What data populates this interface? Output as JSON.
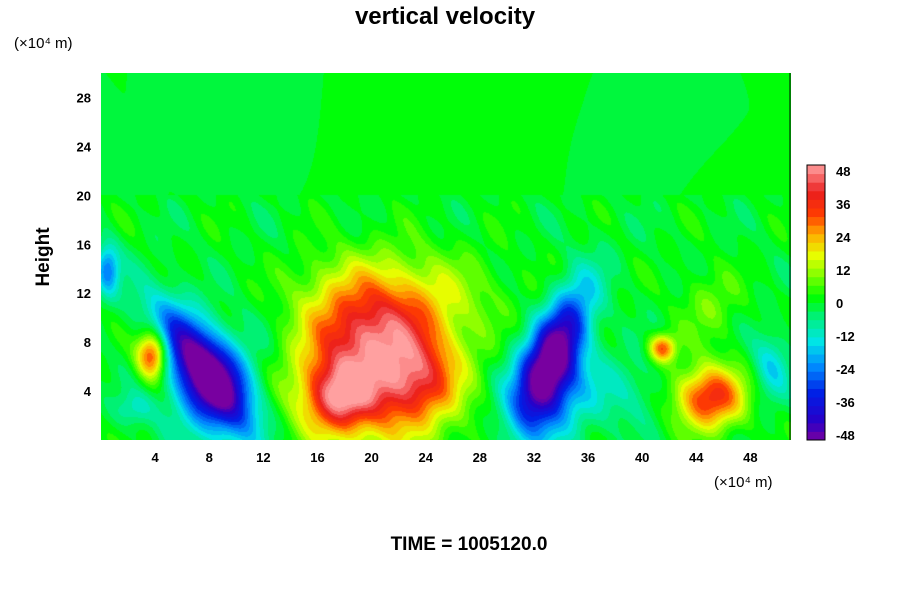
{
  "chart_data": {
    "type": "heatmap",
    "title": "vertical velocity",
    "ylabel": "Height",
    "y_unit": "(×10⁴ m)",
    "x_unit": "(×10⁴ m)",
    "xlim": [
      0,
      51
    ],
    "ylim": [
      0,
      30
    ],
    "xticks": [
      4,
      8,
      12,
      16,
      20,
      24,
      28,
      32,
      36,
      40,
      44,
      48
    ],
    "yticks": [
      4,
      8,
      12,
      16,
      20,
      24,
      28
    ],
    "colorbar": {
      "min": -48,
      "max": 48,
      "ticks": [
        48,
        36,
        24,
        12,
        0,
        -12,
        -24,
        -36,
        -48
      ]
    },
    "features": [
      {
        "x": 20,
        "y": 6,
        "sx": 4.2,
        "sy": 4.2,
        "v": 42
      },
      {
        "x": 17.5,
        "y": 3.5,
        "sx": 1.6,
        "sy": 1.8,
        "v": 24
      },
      {
        "x": 23.5,
        "y": 5,
        "sx": 1.8,
        "sy": 2.2,
        "v": 16
      },
      {
        "x": 20.5,
        "y": 9,
        "sx": 2.5,
        "sy": 2,
        "v": 8
      },
      {
        "x": 21,
        "y": 12,
        "sx": 5.5,
        "sy": 2.5,
        "v": 12
      },
      {
        "x": 45,
        "y": 3.5,
        "sx": 1.8,
        "sy": 1.8,
        "v": 36
      },
      {
        "x": 41.5,
        "y": 7.5,
        "sx": 0.7,
        "sy": 0.8,
        "v": 30
      },
      {
        "x": 3.8,
        "y": 7,
        "sx": 0.8,
        "sy": 1.4,
        "v": 38
      },
      {
        "x": 7.5,
        "y": 6,
        "sx": 1.5,
        "sy": 4,
        "v": -46,
        "rot": -0.55
      },
      {
        "x": 8.3,
        "y": 4,
        "sx": 2.2,
        "sy": 3,
        "v": -20
      },
      {
        "x": 33.5,
        "y": 7,
        "sx": 1.3,
        "sy": 4,
        "v": -46,
        "rot": 0.35
      },
      {
        "x": 33,
        "y": 4,
        "sx": 2.2,
        "sy": 3,
        "v": -22
      },
      {
        "x": 0.5,
        "y": 14,
        "sx": 0.6,
        "sy": 1.5,
        "v": -22
      },
      {
        "x": 49.5,
        "y": 6,
        "sx": 1,
        "sy": 2,
        "v": -14
      },
      {
        "x": 13,
        "y": 9,
        "sx": 2.5,
        "sy": 4,
        "v": -6
      },
      {
        "x": 39,
        "y": 4,
        "sx": 2,
        "sy": 2,
        "v": -8
      },
      {
        "x": 45,
        "y": 11,
        "sx": 1.5,
        "sy": 2,
        "v": 8
      },
      {
        "x": 2.5,
        "y": 2.5,
        "sx": 1,
        "sy": 1,
        "v": -10
      }
    ]
  },
  "footer": {
    "time_label": "TIME = 1005120.0"
  }
}
